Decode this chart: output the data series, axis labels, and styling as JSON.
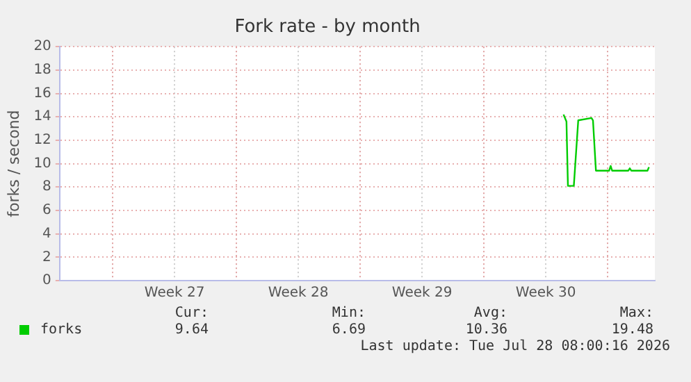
{
  "chart_data": {
    "type": "line",
    "title": "Fork rate - by month",
    "ylabel": "forks / second",
    "series": [
      {
        "name": "forks",
        "color": "#00cc00",
        "x": [
          "2026-07-23T12:00",
          "2026-07-23T16:00",
          "2026-07-23T18:00",
          "2026-07-24T02:00",
          "2026-07-24T08:00",
          "2026-07-25T02:00",
          "2026-07-25T04:00",
          "2026-07-25T08:00",
          "2026-07-26T02:00",
          "2026-07-26T04:00",
          "2026-07-26T06:00",
          "2026-07-27T04:00",
          "2026-07-27T06:00",
          "2026-07-27T08:00",
          "2026-07-28T06:00",
          "2026-07-28T08:00"
        ],
        "values": [
          14.2,
          13.6,
          8.1,
          8.1,
          13.7,
          13.9,
          13.7,
          9.4,
          9.4,
          9.8,
          9.4,
          9.4,
          9.6,
          9.4,
          9.4,
          9.7
        ]
      }
    ],
    "xlim": [
      "2026-06-25",
      "2026-07-28T16:00"
    ],
    "xticks": [
      {
        "value": "2026-06-28",
        "label": null
      },
      {
        "value": "2026-07-01T12:00",
        "label": "Week 27"
      },
      {
        "value": "2026-07-05",
        "label": null
      },
      {
        "value": "2026-07-08T12:00",
        "label": "Week 28"
      },
      {
        "value": "2026-07-12",
        "label": null
      },
      {
        "value": "2026-07-15T12:00",
        "label": "Week 29"
      },
      {
        "value": "2026-07-19",
        "label": null
      },
      {
        "value": "2026-07-22T12:00",
        "label": "Week 30"
      },
      {
        "value": "2026-07-26",
        "label": null
      }
    ],
    "ylim": [
      0,
      20
    ],
    "yticks": [
      0,
      2,
      4,
      6,
      8,
      10,
      12,
      14,
      16,
      18,
      20
    ],
    "grid": true,
    "legend": "bottom left",
    "marker": "none",
    "line_style": "solid",
    "annotations": [
      "Cur:",
      "Min:",
      "Avg:",
      "Max:",
      "9.64",
      "6.69",
      "10.36",
      "19.48",
      "Last update: Tue Jul 28 08:00:16 2026"
    ]
  }
}
